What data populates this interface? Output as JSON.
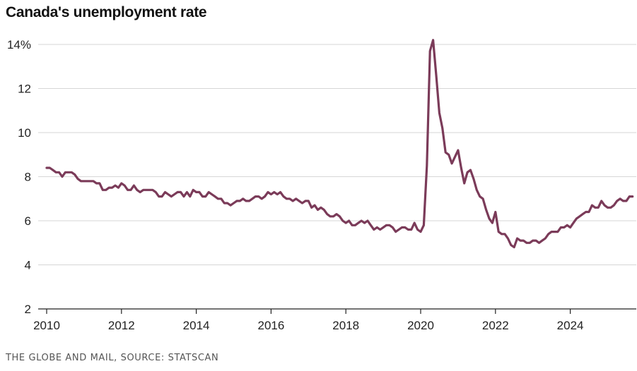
{
  "title": "Canada's unemployment rate",
  "source": "THE GLOBE AND MAIL, SOURCE: STATSCAN",
  "colors": {
    "line": "#7b3b59",
    "grid": "#d6d6d6",
    "axis": "#222222",
    "text": "#222222"
  },
  "chart_data": {
    "type": "line",
    "title": "Canada's unemployment rate",
    "xlabel": "",
    "ylabel": "",
    "x_start_year": 2010,
    "x_step_years": 0.08333,
    "xlim": [
      2010,
      2025.9
    ],
    "ylim": [
      2,
      14.6
    ],
    "yticks": [
      2,
      4,
      6,
      8,
      10,
      12,
      14
    ],
    "ytick_labels": [
      "2",
      "4",
      "6",
      "8",
      "10",
      "12",
      "14%"
    ],
    "xticks": [
      2010,
      2012,
      2014,
      2016,
      2018,
      2020,
      2022,
      2024
    ],
    "xtick_labels": [
      "2010",
      "2012",
      "2014",
      "2016",
      "2018",
      "2020",
      "2022",
      "2024"
    ],
    "grid": true,
    "legend": "none",
    "series": [
      {
        "values": [
          8.4,
          8.4,
          8.3,
          8.2,
          8.2,
          8.0,
          8.2,
          8.2,
          8.2,
          8.1,
          7.9,
          7.8,
          7.8,
          7.8,
          7.8,
          7.8,
          7.7,
          7.7,
          7.4,
          7.4,
          7.5,
          7.5,
          7.6,
          7.5,
          7.7,
          7.6,
          7.4,
          7.4,
          7.6,
          7.4,
          7.3,
          7.4,
          7.4,
          7.4,
          7.4,
          7.3,
          7.1,
          7.1,
          7.3,
          7.2,
          7.1,
          7.2,
          7.3,
          7.3,
          7.1,
          7.3,
          7.1,
          7.4,
          7.3,
          7.3,
          7.1,
          7.1,
          7.3,
          7.2,
          7.1,
          7.0,
          7.0,
          6.8,
          6.8,
          6.7,
          6.8,
          6.9,
          6.9,
          7.0,
          6.9,
          6.9,
          7.0,
          7.1,
          7.1,
          7.0,
          7.1,
          7.3,
          7.2,
          7.3,
          7.2,
          7.3,
          7.1,
          7.0,
          7.0,
          6.9,
          7.0,
          6.9,
          6.8,
          6.9,
          6.9,
          6.6,
          6.7,
          6.5,
          6.6,
          6.5,
          6.3,
          6.2,
          6.2,
          6.3,
          6.2,
          6.0,
          5.9,
          6.0,
          5.8,
          5.8,
          5.9,
          6.0,
          5.9,
          6.0,
          5.8,
          5.6,
          5.7,
          5.6,
          5.7,
          5.8,
          5.8,
          5.7,
          5.5,
          5.6,
          5.7,
          5.7,
          5.6,
          5.6,
          5.9,
          5.6,
          5.5,
          5.8,
          8.5,
          13.7,
          14.2,
          12.6,
          10.9,
          10.2,
          9.1,
          9.0,
          8.6,
          8.9,
          9.2,
          8.4,
          7.7,
          8.2,
          8.3,
          7.9,
          7.4,
          7.1,
          7.0,
          6.5,
          6.1,
          5.9,
          6.4,
          5.5,
          5.4,
          5.4,
          5.2,
          4.9,
          4.8,
          5.2,
          5.1,
          5.1,
          5.0,
          5.0,
          5.1,
          5.1,
          5.0,
          5.1,
          5.2,
          5.4,
          5.5,
          5.5,
          5.5,
          5.7,
          5.7,
          5.8,
          5.7,
          5.9,
          6.1,
          6.2,
          6.3,
          6.4,
          6.4,
          6.7,
          6.6,
          6.6,
          6.9,
          6.7,
          6.6,
          6.6,
          6.7,
          6.9,
          7.0,
          6.9,
          6.9,
          7.1,
          7.1
        ]
      }
    ]
  }
}
